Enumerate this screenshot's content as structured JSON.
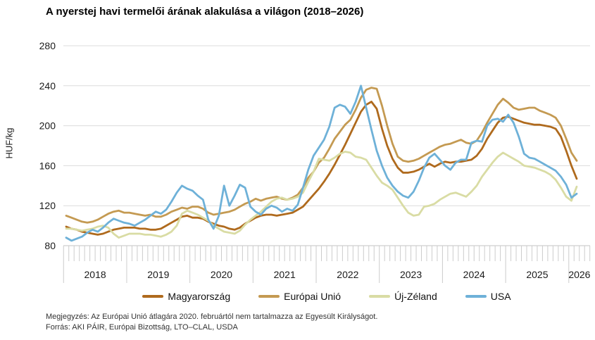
{
  "title": "A nyerstej havi termelői árának alakulása a világon (2018–2026)",
  "y_axis": {
    "label": "HUF/kg",
    "ticks": [
      280,
      240,
      200,
      160,
      120,
      80
    ]
  },
  "x_axis": {
    "years": [
      "2018",
      "2019",
      "2020",
      "2021",
      "2022",
      "2023",
      "2024",
      "2025",
      "2026"
    ]
  },
  "legend": [
    {
      "label": "Magyarország",
      "color": "#AF6A1D"
    },
    {
      "label": "Európai Unió",
      "color": "#C49A52"
    },
    {
      "label": "Új-Zéland",
      "color": "#D9DCA4"
    },
    {
      "label": "USA",
      "color": "#6EB1D8"
    }
  ],
  "notes": {
    "line1": "Megjegyzés: Az Európai Unió átlagára 2020. februártól nem tartalmazza az Egyesült Királyságot.",
    "line2": "Forrás: AKI PÁIR, Európai Bizottság, LTO–CLAL, USDA"
  },
  "chart_data": {
    "type": "line",
    "title": "A nyerstej havi termelői árának alakulása a világon (2018–2026)",
    "ylabel": "HUF/kg",
    "ylim": [
      80,
      280
    ],
    "grid": "horizontal",
    "legend_position": "bottom",
    "x_unit": "month",
    "x_start": "2018-01",
    "x_end": "2026-02",
    "series": [
      {
        "name": "Magyarország",
        "color": "#AF6A1D",
        "values": [
          99,
          97,
          96,
          94,
          93,
          92,
          91,
          92,
          94,
          96,
          97,
          98,
          98,
          98,
          97,
          97,
          96,
          96,
          97,
          100,
          103,
          106,
          109,
          110,
          108,
          108,
          107,
          104,
          102,
          100,
          99,
          97,
          96,
          98,
          102,
          105,
          108,
          110,
          111,
          111,
          110,
          111,
          112,
          113,
          116,
          119,
          125,
          131,
          137,
          144,
          152,
          161,
          171,
          181,
          192,
          203,
          214,
          221,
          224,
          217,
          197,
          180,
          167,
          158,
          153,
          153,
          154,
          156,
          159,
          162,
          159,
          162,
          164,
          163,
          164,
          164,
          165,
          166,
          170,
          177,
          187,
          195,
          203,
          208,
          209,
          207,
          205,
          203,
          202,
          201,
          201,
          200,
          199,
          197,
          189,
          175,
          160,
          147
        ]
      },
      {
        "name": "Európai Unió",
        "color": "#C49A52",
        "values": [
          110,
          108,
          106,
          104,
          103,
          104,
          106,
          109,
          112,
          114,
          115,
          113,
          113,
          112,
          111,
          110,
          111,
          109,
          109,
          111,
          114,
          116,
          118,
          117,
          119,
          119,
          117,
          113,
          111,
          112,
          113,
          114,
          116,
          119,
          122,
          124,
          127,
          125,
          127,
          128,
          129,
          127,
          126,
          128,
          131,
          138,
          148,
          154,
          163,
          168,
          177,
          187,
          194,
          201,
          206,
          216,
          228,
          236,
          238,
          237,
          220,
          200,
          182,
          169,
          165,
          164,
          165,
          167,
          170,
          173,
          176,
          179,
          181,
          182,
          184,
          186,
          183,
          182,
          185,
          193,
          203,
          212,
          221,
          227,
          223,
          218,
          216,
          217,
          218,
          218,
          215,
          213,
          211,
          208,
          200,
          187,
          173,
          165
        ]
      },
      {
        "name": "Új-Zéland",
        "color": "#D9DCA4",
        "values": [
          97,
          97,
          96,
          95,
          96,
          97,
          99,
          100,
          98,
          92,
          88,
          90,
          92,
          92,
          92,
          91,
          91,
          90,
          89,
          91,
          94,
          100,
          112,
          115,
          113,
          111,
          108,
          105,
          100,
          97,
          94,
          93,
          92,
          95,
          101,
          106,
          110,
          114,
          119,
          124,
          127,
          128,
          126,
          127,
          129,
          133,
          144,
          154,
          167,
          166,
          165,
          168,
          172,
          174,
          173,
          169,
          168,
          166,
          158,
          150,
          143,
          140,
          136,
          128,
          120,
          113,
          110,
          111,
          119,
          120,
          122,
          126,
          129,
          132,
          133,
          131,
          129,
          134,
          140,
          149,
          156,
          163,
          169,
          173,
          170,
          167,
          164,
          160,
          159,
          158,
          156,
          154,
          151,
          146,
          138,
          129,
          125,
          139
        ]
      },
      {
        "name": "USA",
        "color": "#6EB1D8",
        "values": [
          88,
          85,
          87,
          89,
          93,
          96,
          94,
          98,
          103,
          107,
          105,
          103,
          102,
          100,
          103,
          106,
          110,
          114,
          112,
          116,
          124,
          133,
          140,
          137,
          135,
          130,
          126,
          106,
          97,
          110,
          140,
          120,
          130,
          141,
          138,
          119,
          114,
          111,
          117,
          120,
          118,
          114,
          117,
          115,
          121,
          138,
          156,
          170,
          178,
          186,
          199,
          218,
          221,
          219,
          212,
          224,
          240,
          218,
          196,
          175,
          160,
          148,
          140,
          134,
          130,
          128,
          134,
          145,
          158,
          168,
          172,
          166,
          160,
          156,
          163,
          166,
          166,
          183,
          185,
          184,
          200,
          206,
          207,
          204,
          211,
          203,
          189,
          172,
          168,
          167,
          164,
          161,
          158,
          155,
          149,
          141,
          128,
          132
        ]
      }
    ]
  }
}
